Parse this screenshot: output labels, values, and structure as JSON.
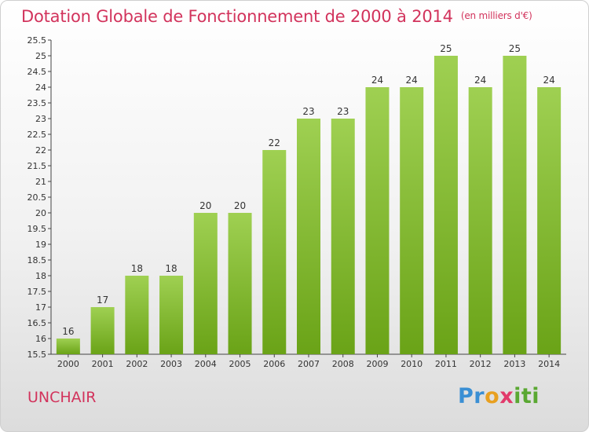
{
  "title": "Dotation Globale de Fonctionnement de 2000 à 2014",
  "unit_note": "(en milliers d'€)",
  "commune": "UNCHAIR",
  "logo": {
    "letters": [
      "P",
      "r",
      "o",
      "x",
      "i",
      "t",
      "i"
    ],
    "colors": [
      "#3a8fd4",
      "#3a8fd4",
      "#e8a020",
      "#e23a6b",
      "#5aa832",
      "#5aa832",
      "#5aa832"
    ]
  },
  "colors": {
    "bar_top": "#9fd052",
    "bar_bottom": "#6aa317",
    "accent": "#d2335c"
  },
  "chart_data": {
    "type": "bar",
    "title": "Dotation Globale de Fonctionnement de 2000 à 2014",
    "xlabel": "",
    "ylabel": "",
    "categories": [
      "2000",
      "2001",
      "2002",
      "2003",
      "2004",
      "2005",
      "2006",
      "2007",
      "2008",
      "2009",
      "2010",
      "2011",
      "2012",
      "2013",
      "2014"
    ],
    "values": [
      16,
      17,
      18,
      18,
      20,
      20,
      22,
      23,
      23,
      24,
      24,
      25,
      24,
      25,
      24
    ],
    "value_labels": [
      "16",
      "17",
      "18",
      "18",
      "20",
      "20",
      "22",
      "23",
      "23",
      "24",
      "24",
      "25",
      "24",
      "25",
      "24"
    ],
    "ylim": [
      15.5,
      25.5
    ],
    "yticks": [
      "15.5",
      "16",
      "16.5",
      "17",
      "17.5",
      "18",
      "18.5",
      "19",
      "19.5",
      "20",
      "20.5",
      "21",
      "21.5",
      "22",
      "22.5",
      "23",
      "23.5",
      "24",
      "24.5",
      "25",
      "25.5"
    ],
    "grid": false,
    "legend": "none"
  }
}
